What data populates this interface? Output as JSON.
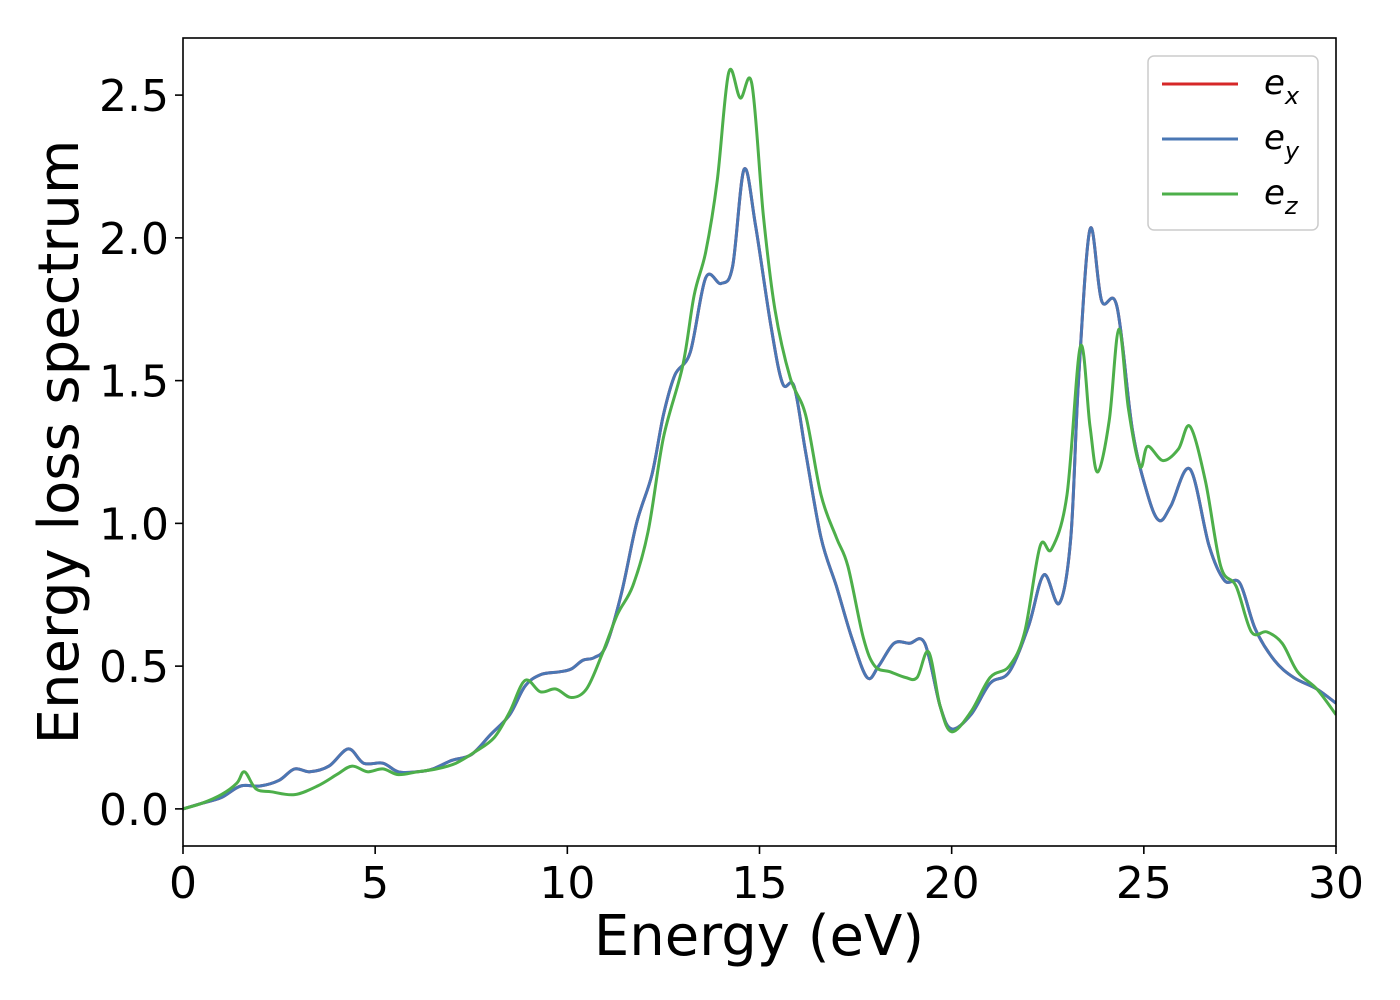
{
  "chart_data": {
    "type": "line",
    "xlabel": "Energy (eV)",
    "ylabel": "Energy loss spectrum",
    "xlim": [
      0,
      30
    ],
    "ylim": [
      -0.13,
      2.7
    ],
    "x_ticks": [
      "0",
      "5",
      "10",
      "15",
      "20",
      "25",
      "30"
    ],
    "y_ticks": [
      "0.0",
      "0.5",
      "1.0",
      "1.5",
      "2.0",
      "2.5"
    ],
    "legend_position": "upper-right",
    "series": [
      {
        "name_base": "e",
        "name_sub": "x",
        "color": "#d62728",
        "points": [
          [
            0,
            0.0
          ],
          [
            0.5,
            0.02
          ],
          [
            1,
            0.04
          ],
          [
            1.5,
            0.08
          ],
          [
            2,
            0.08
          ],
          [
            2.5,
            0.1
          ],
          [
            2.9,
            0.14
          ],
          [
            3.3,
            0.13
          ],
          [
            3.8,
            0.15
          ],
          [
            4.3,
            0.21
          ],
          [
            4.7,
            0.16
          ],
          [
            5.2,
            0.16
          ],
          [
            5.6,
            0.13
          ],
          [
            6.1,
            0.13
          ],
          [
            6.5,
            0.14
          ],
          [
            7,
            0.17
          ],
          [
            7.5,
            0.19
          ],
          [
            8,
            0.26
          ],
          [
            8.5,
            0.33
          ],
          [
            8.9,
            0.43
          ],
          [
            9.3,
            0.47
          ],
          [
            9.8,
            0.48
          ],
          [
            10.1,
            0.49
          ],
          [
            10.4,
            0.52
          ],
          [
            10.7,
            0.53
          ],
          [
            11,
            0.57
          ],
          [
            11.4,
            0.75
          ],
          [
            11.8,
            1.0
          ],
          [
            12.2,
            1.17
          ],
          [
            12.5,
            1.38
          ],
          [
            12.8,
            1.52
          ],
          [
            13.2,
            1.6
          ],
          [
            13.6,
            1.86
          ],
          [
            14,
            1.84
          ],
          [
            14.3,
            1.9
          ],
          [
            14.6,
            2.24
          ],
          [
            14.9,
            2.04
          ],
          [
            15.3,
            1.69
          ],
          [
            15.6,
            1.49
          ],
          [
            15.9,
            1.48
          ],
          [
            16.2,
            1.25
          ],
          [
            16.6,
            0.95
          ],
          [
            17,
            0.78
          ],
          [
            17.4,
            0.6
          ],
          [
            17.8,
            0.46
          ],
          [
            18.1,
            0.5
          ],
          [
            18.5,
            0.58
          ],
          [
            18.9,
            0.58
          ],
          [
            19.3,
            0.58
          ],
          [
            19.7,
            0.36
          ],
          [
            20,
            0.28
          ],
          [
            20.5,
            0.33
          ],
          [
            21,
            0.44
          ],
          [
            21.5,
            0.48
          ],
          [
            22,
            0.64
          ],
          [
            22.4,
            0.82
          ],
          [
            22.8,
            0.72
          ],
          [
            23.1,
            0.95
          ],
          [
            23.3,
            1.5
          ],
          [
            23.6,
            2.03
          ],
          [
            23.9,
            1.78
          ],
          [
            24.3,
            1.76
          ],
          [
            24.7,
            1.33
          ],
          [
            25.1,
            1.1
          ],
          [
            25.4,
            1.01
          ],
          [
            25.7,
            1.06
          ],
          [
            26.2,
            1.19
          ],
          [
            26.7,
            0.92
          ],
          [
            27.1,
            0.8
          ],
          [
            27.5,
            0.79
          ],
          [
            27.9,
            0.63
          ],
          [
            28.4,
            0.52
          ],
          [
            28.9,
            0.46
          ],
          [
            29.5,
            0.42
          ],
          [
            30,
            0.37
          ]
        ]
      },
      {
        "name_base": "e",
        "name_sub": "y",
        "color": "#4a77b4",
        "points": [
          [
            0,
            0.0
          ],
          [
            0.5,
            0.02
          ],
          [
            1,
            0.04
          ],
          [
            1.5,
            0.08
          ],
          [
            2,
            0.08
          ],
          [
            2.5,
            0.1
          ],
          [
            2.9,
            0.14
          ],
          [
            3.3,
            0.13
          ],
          [
            3.8,
            0.15
          ],
          [
            4.3,
            0.21
          ],
          [
            4.7,
            0.16
          ],
          [
            5.2,
            0.16
          ],
          [
            5.6,
            0.13
          ],
          [
            6.1,
            0.13
          ],
          [
            6.5,
            0.14
          ],
          [
            7,
            0.17
          ],
          [
            7.5,
            0.19
          ],
          [
            8,
            0.26
          ],
          [
            8.5,
            0.33
          ],
          [
            8.9,
            0.43
          ],
          [
            9.3,
            0.47
          ],
          [
            9.8,
            0.48
          ],
          [
            10.1,
            0.49
          ],
          [
            10.4,
            0.52
          ],
          [
            10.7,
            0.53
          ],
          [
            11,
            0.57
          ],
          [
            11.4,
            0.75
          ],
          [
            11.8,
            1.0
          ],
          [
            12.2,
            1.17
          ],
          [
            12.5,
            1.38
          ],
          [
            12.8,
            1.52
          ],
          [
            13.2,
            1.6
          ],
          [
            13.6,
            1.86
          ],
          [
            14,
            1.84
          ],
          [
            14.3,
            1.9
          ],
          [
            14.6,
            2.24
          ],
          [
            14.9,
            2.04
          ],
          [
            15.3,
            1.69
          ],
          [
            15.6,
            1.49
          ],
          [
            15.9,
            1.48
          ],
          [
            16.2,
            1.25
          ],
          [
            16.6,
            0.95
          ],
          [
            17,
            0.78
          ],
          [
            17.4,
            0.6
          ],
          [
            17.8,
            0.46
          ],
          [
            18.1,
            0.5
          ],
          [
            18.5,
            0.58
          ],
          [
            18.9,
            0.58
          ],
          [
            19.3,
            0.58
          ],
          [
            19.7,
            0.36
          ],
          [
            20,
            0.28
          ],
          [
            20.5,
            0.33
          ],
          [
            21,
            0.44
          ],
          [
            21.5,
            0.48
          ],
          [
            22,
            0.64
          ],
          [
            22.4,
            0.82
          ],
          [
            22.8,
            0.72
          ],
          [
            23.1,
            0.95
          ],
          [
            23.3,
            1.5
          ],
          [
            23.6,
            2.03
          ],
          [
            23.9,
            1.78
          ],
          [
            24.3,
            1.76
          ],
          [
            24.7,
            1.33
          ],
          [
            25.1,
            1.1
          ],
          [
            25.4,
            1.01
          ],
          [
            25.7,
            1.06
          ],
          [
            26.2,
            1.19
          ],
          [
            26.7,
            0.92
          ],
          [
            27.1,
            0.8
          ],
          [
            27.5,
            0.79
          ],
          [
            27.9,
            0.63
          ],
          [
            28.4,
            0.52
          ],
          [
            28.9,
            0.46
          ],
          [
            29.5,
            0.42
          ],
          [
            30,
            0.37
          ]
        ]
      },
      {
        "name_base": "e",
        "name_sub": "z",
        "color": "#4daf4a",
        "points": [
          [
            0,
            0.0
          ],
          [
            0.5,
            0.02
          ],
          [
            1,
            0.05
          ],
          [
            1.4,
            0.09
          ],
          [
            1.6,
            0.13
          ],
          [
            1.9,
            0.07
          ],
          [
            2.3,
            0.06
          ],
          [
            2.9,
            0.05
          ],
          [
            3.5,
            0.08
          ],
          [
            4,
            0.12
          ],
          [
            4.4,
            0.15
          ],
          [
            4.8,
            0.13
          ],
          [
            5.2,
            0.14
          ],
          [
            5.6,
            0.12
          ],
          [
            6.1,
            0.13
          ],
          [
            6.6,
            0.14
          ],
          [
            7.1,
            0.16
          ],
          [
            7.6,
            0.2
          ],
          [
            8.1,
            0.25
          ],
          [
            8.5,
            0.34
          ],
          [
            8.9,
            0.45
          ],
          [
            9.3,
            0.41
          ],
          [
            9.7,
            0.42
          ],
          [
            10.1,
            0.39
          ],
          [
            10.5,
            0.42
          ],
          [
            10.9,
            0.54
          ],
          [
            11.3,
            0.68
          ],
          [
            11.7,
            0.78
          ],
          [
            12.1,
            0.97
          ],
          [
            12.5,
            1.3
          ],
          [
            13,
            1.55
          ],
          [
            13.3,
            1.8
          ],
          [
            13.6,
            1.95
          ],
          [
            13.9,
            2.2
          ],
          [
            14.2,
            2.58
          ],
          [
            14.5,
            2.49
          ],
          [
            14.8,
            2.54
          ],
          [
            15.1,
            2.08
          ],
          [
            15.4,
            1.75
          ],
          [
            15.8,
            1.51
          ],
          [
            16.2,
            1.38
          ],
          [
            16.6,
            1.1
          ],
          [
            17,
            0.95
          ],
          [
            17.3,
            0.85
          ],
          [
            17.7,
            0.6
          ],
          [
            18,
            0.5
          ],
          [
            18.4,
            0.48
          ],
          [
            18.8,
            0.46
          ],
          [
            19.1,
            0.46
          ],
          [
            19.4,
            0.55
          ],
          [
            19.7,
            0.36
          ],
          [
            20,
            0.27
          ],
          [
            20.5,
            0.34
          ],
          [
            21,
            0.46
          ],
          [
            21.5,
            0.5
          ],
          [
            21.9,
            0.62
          ],
          [
            22.3,
            0.92
          ],
          [
            22.6,
            0.91
          ],
          [
            23,
            1.1
          ],
          [
            23.35,
            1.62
          ],
          [
            23.6,
            1.34
          ],
          [
            23.8,
            1.18
          ],
          [
            24.1,
            1.36
          ],
          [
            24.35,
            1.68
          ],
          [
            24.6,
            1.4
          ],
          [
            24.9,
            1.2
          ],
          [
            25.1,
            1.27
          ],
          [
            25.5,
            1.22
          ],
          [
            25.9,
            1.26
          ],
          [
            26.2,
            1.34
          ],
          [
            26.6,
            1.15
          ],
          [
            27,
            0.85
          ],
          [
            27.4,
            0.78
          ],
          [
            27.8,
            0.62
          ],
          [
            28.2,
            0.62
          ],
          [
            28.6,
            0.58
          ],
          [
            29,
            0.48
          ],
          [
            29.5,
            0.42
          ],
          [
            30,
            0.33
          ]
        ]
      }
    ]
  }
}
